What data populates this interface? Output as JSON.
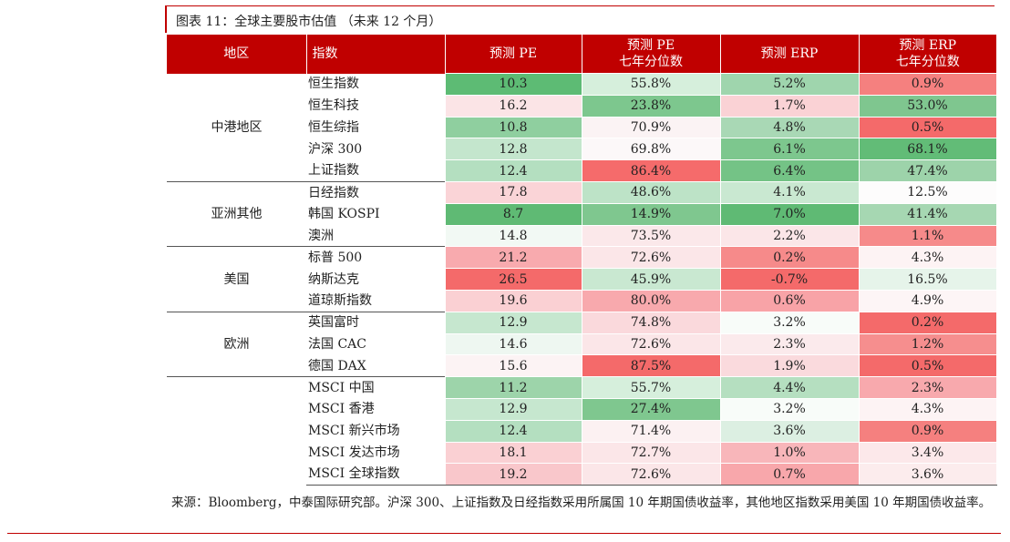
{
  "title": "图表 11：全球主要股市估值 （未来 12 个月）",
  "headers": [
    "地区",
    "指数",
    "预测 PE",
    "预测 PE\n七年分位数",
    "预测 ERP",
    "预测 ERP\n七年分位数"
  ],
  "groups": [
    {
      "region": "中港地区",
      "rows": [
        {
          "name": "恒生指数",
          "pe": "10.3",
          "pe_pct": "55.8%",
          "erp": "5.2%",
          "erp_pct": "0.9%",
          "colors": [
            "#5dbb74",
            "#d6efdc",
            "#9fd5ad",
            "#f5807f"
          ]
        },
        {
          "name": "恒生科技",
          "pe": "16.2",
          "pe_pct": "23.8%",
          "erp": "1.7%",
          "erp_pct": "53.0%",
          "colors": [
            "#fbe4e6",
            "#7dc78e",
            "#fad2d5",
            "#7fc68f"
          ]
        },
        {
          "name": "恒生综指",
          "pe": "10.8",
          "pe_pct": "70.9%",
          "erp": "4.8%",
          "erp_pct": "0.5%",
          "colors": [
            "#8fcf9f",
            "#fbf3f4",
            "#a9d8b5",
            "#f46a6a"
          ]
        },
        {
          "name": "沪深 300",
          "pe": "12.8",
          "pe_pct": "69.8%",
          "erp": "6.1%",
          "erp_pct": "68.1%",
          "colors": [
            "#c4e6cd",
            "#fcf8f9",
            "#7dc78e",
            "#62bc77"
          ]
        },
        {
          "name": "上证指数",
          "pe": "12.4",
          "pe_pct": "86.4%",
          "erp": "6.4%",
          "erp_pct": "47.4%",
          "colors": [
            "#b4dfc0",
            "#f56b6b",
            "#74c386",
            "#9dd3aa"
          ]
        }
      ]
    },
    {
      "region": "亚洲其他",
      "rows": [
        {
          "name": "日经指数",
          "pe": "17.8",
          "pe_pct": "48.6%",
          "erp": "4.1%",
          "erp_pct": "12.5%",
          "colors": [
            "#fad4d7",
            "#bde3c7",
            "#c9e8d1",
            "#fdfcfc"
          ]
        },
        {
          "name": "韩国 KOSPI",
          "pe": "8.7",
          "pe_pct": "14.9%",
          "erp": "7.0%",
          "erp_pct": "41.4%",
          "colors": [
            "#5fba74",
            "#7fc78f",
            "#5fba74",
            "#a6d7b2"
          ]
        },
        {
          "name": "澳洲",
          "pe": "14.8",
          "pe_pct": "73.5%",
          "erp": "2.2%",
          "erp_pct": "1.1%",
          "colors": [
            "#f2f9f4",
            "#fbe8ea",
            "#fbe6e8",
            "#f68a8a"
          ]
        }
      ]
    },
    {
      "region": "美国",
      "rows": [
        {
          "name": "标普 500",
          "pe": "21.2",
          "pe_pct": "72.6%",
          "erp": "0.2%",
          "erp_pct": "4.3%",
          "colors": [
            "#f8aaae",
            "#fbe6e8",
            "#f68a8a",
            "#fdf3f4"
          ]
        },
        {
          "name": "纳斯达克",
          "pe": "26.5",
          "pe_pct": "45.9%",
          "erp": "-0.7%",
          "erp_pct": "16.5%",
          "colors": [
            "#f46a6a",
            "#c9e8d1",
            "#f46a6a",
            "#e6f4ea"
          ]
        },
        {
          "name": "道琼斯指数",
          "pe": "19.6",
          "pe_pct": "80.0%",
          "erp": "0.6%",
          "erp_pct": "4.9%",
          "colors": [
            "#fad0d3",
            "#f8a9ad",
            "#f8a3a7",
            "#fdf5f6"
          ]
        }
      ]
    },
    {
      "region": "欧洲",
      "rows": [
        {
          "name": "英国富时",
          "pe": "12.9",
          "pe_pct": "74.8%",
          "erp": "3.2%",
          "erp_pct": "0.2%",
          "colors": [
            "#c6e7cf",
            "#fad9dc",
            "#f8fcf9",
            "#f46a6a"
          ]
        },
        {
          "name": "法国 CAC",
          "pe": "14.6",
          "pe_pct": "72.6%",
          "erp": "2.3%",
          "erp_pct": "1.2%",
          "colors": [
            "#eef7f1",
            "#fbe6e8",
            "#fbeaec",
            "#f68e8e"
          ]
        },
        {
          "name": "德国 DAX",
          "pe": "15.6",
          "pe_pct": "87.5%",
          "erp": "1.9%",
          "erp_pct": "0.5%",
          "colors": [
            "#fcf3f4",
            "#f46a6a",
            "#fadadd",
            "#f46a6a"
          ]
        }
      ]
    },
    {
      "region": "",
      "rows": [
        {
          "name": "MSCI 中国",
          "pe": "11.2",
          "pe_pct": "55.7%",
          "erp": "4.4%",
          "erp_pct": "2.3%",
          "colors": [
            "#9dd4aa",
            "#d6efdc",
            "#b5dfc0",
            "#f8a9ad"
          ]
        },
        {
          "name": "MSCI 香港",
          "pe": "12.9",
          "pe_pct": "27.4%",
          "erp": "3.2%",
          "erp_pct": "4.3%",
          "colors": [
            "#c6e7cf",
            "#7fc78f",
            "#f8fcf9",
            "#fdf3f4"
          ]
        },
        {
          "name": "MSCI 新兴市场",
          "pe": "12.4",
          "pe_pct": "71.4%",
          "erp": "3.6%",
          "erp_pct": "0.9%",
          "colors": [
            "#b4dfc0",
            "#fcf1f2",
            "#dcefe2",
            "#f5807f"
          ]
        },
        {
          "name": "MSCI 发达市场",
          "pe": "18.1",
          "pe_pct": "72.7%",
          "erp": "1.0%",
          "erp_pct": "3.4%",
          "colors": [
            "#fad0d3",
            "#fbe6e8",
            "#f8b6ba",
            "#fce8ea"
          ]
        },
        {
          "name": "MSCI 全球指数",
          "pe": "19.2",
          "pe_pct": "72.6%",
          "erp": "0.7%",
          "erp_pct": "3.6%",
          "colors": [
            "#f9c7cb",
            "#fbe6e8",
            "#f8a7ab",
            "#fceced"
          ]
        }
      ]
    }
  ],
  "source": "来源：Bloomberg，中泰国际研究部。沪深 300、上证指数及日经指数采用所属国 10 年期国债收益率，其他地区指数采用美国 10 年期国债收益率。"
}
